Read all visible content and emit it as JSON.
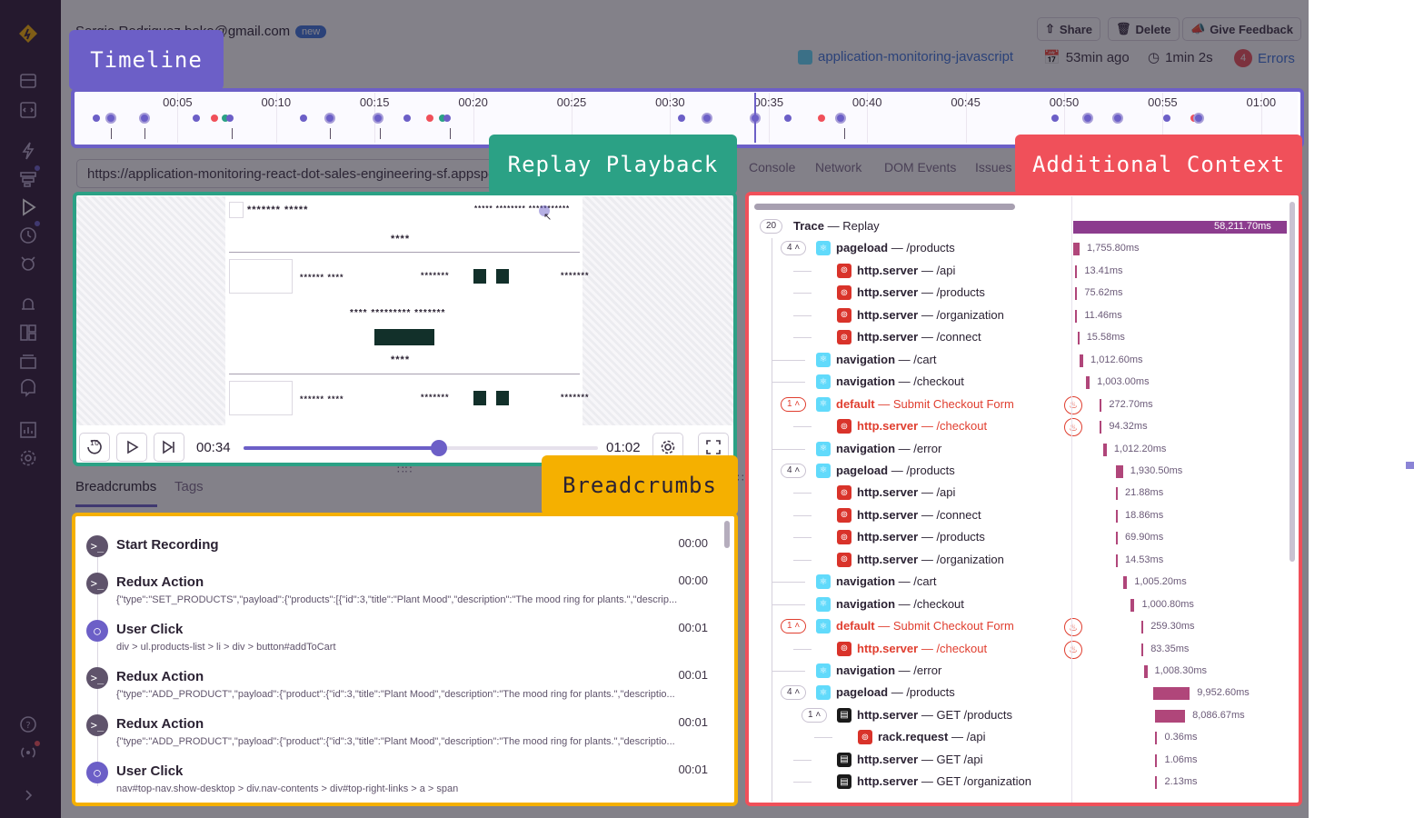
{
  "header": {
    "email": "Sergio Rodriguez.boko@gmail.com",
    "badge_new": "new",
    "share_label": "Share",
    "delete_label": "Delete",
    "feedback_label": "Give Feedback",
    "project": "application-monitoring-javascript",
    "time_ago": "53min ago",
    "duration": "1min 2s",
    "error_count": "4",
    "errors_label": "Errors"
  },
  "callouts": {
    "timeline": "Timeline",
    "replay": "Replay Playback",
    "context": "Additional Context",
    "breadcrumbs": "Breadcrumbs"
  },
  "timeline": {
    "ticks": [
      "00:05",
      "00:10",
      "00:15",
      "00:20",
      "00:25",
      "00:30",
      "00:35",
      "00:40",
      "00:45",
      "00:50",
      "00:55",
      "01:00"
    ]
  },
  "url": "https://application-monitoring-react-dot-sales-engineering-sf.appspot.com/products",
  "context_tabs": [
    "Console",
    "Network",
    "DOM Events",
    "Issues"
  ],
  "replay": {
    "current_time": "00:34",
    "total_time": "01:02",
    "progress": 0.55,
    "skip_label": "10"
  },
  "breadcrumb_tabs": {
    "breadcrumbs": "Breadcrumbs",
    "tags": "Tags"
  },
  "breadcrumbs": [
    {
      "title": "Start Recording",
      "time": "00:00",
      "desc": "",
      "icon": "terminal"
    },
    {
      "title": "Redux Action",
      "time": "00:00",
      "desc": "{\"type\":\"SET_PRODUCTS\",\"payload\":{\"products\":[{\"id\":3,\"title\":\"Plant Mood\",\"description\":\"The mood ring for plants.\",\"descrip...",
      "icon": "terminal"
    },
    {
      "title": "User Click",
      "time": "00:01",
      "desc": "div > ul.products-list > li > div > button#addToCart",
      "icon": "user"
    },
    {
      "title": "Redux Action",
      "time": "00:01",
      "desc": "{\"type\":\"ADD_PRODUCT\",\"payload\":{\"product\":{\"id\":3,\"title\":\"Plant Mood\",\"description\":\"The mood ring for plants.\",\"descriptio...",
      "icon": "terminal"
    },
    {
      "title": "Redux Action",
      "time": "00:01",
      "desc": "{\"type\":\"ADD_PRODUCT\",\"payload\":{\"product\":{\"id\":3,\"title\":\"Plant Mood\",\"description\":\"The mood ring for plants.\",\"descriptio...",
      "icon": "terminal"
    },
    {
      "title": "User Click",
      "time": "00:01",
      "desc": "nav#top-nav.show-desktop > div.nav-contents > div#top-right-links > a > span",
      "icon": "user"
    }
  ],
  "trace": {
    "root_count": "20",
    "root_op": "Trace",
    "root_desc": "Replay",
    "root_duration": "58,211.70ms",
    "rows": [
      {
        "indent": 1,
        "count": "4",
        "icon": "react",
        "op": "pageload",
        "desc": "/products",
        "dur": "1,755.80ms",
        "bar_start": 0.0,
        "bar_w": 0.03,
        "err": false
      },
      {
        "indent": 2,
        "count": "",
        "icon": "rails",
        "op": "http.server",
        "desc": "/api",
        "dur": "13.41ms",
        "bar_start": 0.01,
        "bar_w": 0.004,
        "err": false
      },
      {
        "indent": 2,
        "count": "",
        "icon": "rails",
        "op": "http.server",
        "desc": "/products",
        "dur": "75.62ms",
        "bar_start": 0.01,
        "bar_w": 0.004,
        "err": false
      },
      {
        "indent": 2,
        "count": "",
        "icon": "rails",
        "op": "http.server",
        "desc": "/organization",
        "dur": "11.46ms",
        "bar_start": 0.01,
        "bar_w": 0.004,
        "err": false
      },
      {
        "indent": 2,
        "count": "",
        "icon": "rails",
        "op": "http.server",
        "desc": "/connect",
        "dur": "15.58ms",
        "bar_start": 0.02,
        "bar_w": 0.004,
        "err": false
      },
      {
        "indent": 1,
        "count": "",
        "icon": "react",
        "op": "navigation",
        "desc": "/cart",
        "dur": "1,012.60ms",
        "bar_start": 0.03,
        "bar_w": 0.017,
        "err": false
      },
      {
        "indent": 1,
        "count": "",
        "icon": "react",
        "op": "navigation",
        "desc": "/checkout",
        "dur": "1,003.00ms",
        "bar_start": 0.06,
        "bar_w": 0.017,
        "err": false
      },
      {
        "indent": 1,
        "count": "1",
        "icon": "react",
        "op": "default",
        "desc": "Submit Checkout Form",
        "dur": "272.70ms",
        "bar_start": 0.125,
        "bar_w": 0.005,
        "err": true
      },
      {
        "indent": 2,
        "count": "",
        "icon": "rails",
        "op": "http.server",
        "desc": "/checkout",
        "dur": "94.32ms",
        "bar_start": 0.125,
        "bar_w": 0.004,
        "err": true
      },
      {
        "indent": 1,
        "count": "",
        "icon": "react",
        "op": "navigation",
        "desc": "/error",
        "dur": "1,012.20ms",
        "bar_start": 0.14,
        "bar_w": 0.017,
        "err": false
      },
      {
        "indent": 1,
        "count": "4",
        "icon": "react",
        "op": "pageload",
        "desc": "/products",
        "dur": "1,930.50ms",
        "bar_start": 0.2,
        "bar_w": 0.033,
        "err": false
      },
      {
        "indent": 2,
        "count": "",
        "icon": "rails",
        "op": "http.server",
        "desc": "/api",
        "dur": "21.88ms",
        "bar_start": 0.2,
        "bar_w": 0.004,
        "err": false
      },
      {
        "indent": 2,
        "count": "",
        "icon": "rails",
        "op": "http.server",
        "desc": "/connect",
        "dur": "18.86ms",
        "bar_start": 0.2,
        "bar_w": 0.004,
        "err": false
      },
      {
        "indent": 2,
        "count": "",
        "icon": "rails",
        "op": "http.server",
        "desc": "/products",
        "dur": "69.90ms",
        "bar_start": 0.2,
        "bar_w": 0.004,
        "err": false
      },
      {
        "indent": 2,
        "count": "",
        "icon": "rails",
        "op": "http.server",
        "desc": "/organization",
        "dur": "14.53ms",
        "bar_start": 0.2,
        "bar_w": 0.004,
        "err": false
      },
      {
        "indent": 1,
        "count": "",
        "icon": "react",
        "op": "navigation",
        "desc": "/cart",
        "dur": "1,005.20ms",
        "bar_start": 0.235,
        "bar_w": 0.017,
        "err": false
      },
      {
        "indent": 1,
        "count": "",
        "icon": "react",
        "op": "navigation",
        "desc": "/checkout",
        "dur": "1,000.80ms",
        "bar_start": 0.27,
        "bar_w": 0.017,
        "err": false
      },
      {
        "indent": 1,
        "count": "1",
        "icon": "react",
        "op": "default",
        "desc": "Submit Checkout Form",
        "dur": "259.30ms",
        "bar_start": 0.32,
        "bar_w": 0.005,
        "err": true
      },
      {
        "indent": 2,
        "count": "",
        "icon": "rails",
        "op": "http.server",
        "desc": "/checkout",
        "dur": "83.35ms",
        "bar_start": 0.32,
        "bar_w": 0.004,
        "err": true
      },
      {
        "indent": 1,
        "count": "",
        "icon": "react",
        "op": "navigation",
        "desc": "/error",
        "dur": "1,008.30ms",
        "bar_start": 0.33,
        "bar_w": 0.017,
        "err": false
      },
      {
        "indent": 1,
        "count": "4",
        "icon": "react",
        "op": "pageload",
        "desc": "/products",
        "dur": "9,952.60ms",
        "bar_start": 0.375,
        "bar_w": 0.171,
        "err": false
      },
      {
        "indent": 2,
        "count": "1",
        "icon": "black",
        "op": "http.server",
        "desc": "GET /products",
        "dur": "8,086.67ms",
        "bar_start": 0.385,
        "bar_w": 0.139,
        "err": false
      },
      {
        "indent": 3,
        "count": "",
        "icon": "rails",
        "op": "rack.request",
        "desc": "/api",
        "dur": "0.36ms",
        "bar_start": 0.385,
        "bar_w": 0.003,
        "err": false
      },
      {
        "indent": 2,
        "count": "",
        "icon": "black",
        "op": "http.server",
        "desc": "GET /api",
        "dur": "1.06ms",
        "bar_start": 0.385,
        "bar_w": 0.003,
        "err": false
      },
      {
        "indent": 2,
        "count": "",
        "icon": "black",
        "op": "http.server",
        "desc": "GET /organization",
        "dur": "2.13ms",
        "bar_start": 0.385,
        "bar_w": 0.003,
        "err": false
      }
    ]
  },
  "colors": {
    "accent": "#6c5fc7",
    "timeline_frame": "#6c5fc7",
    "replay_frame": "#2ba185",
    "context_frame": "#f0505a",
    "breadcrumbs_frame": "#f5b000",
    "span_bar": "#b0467a"
  }
}
